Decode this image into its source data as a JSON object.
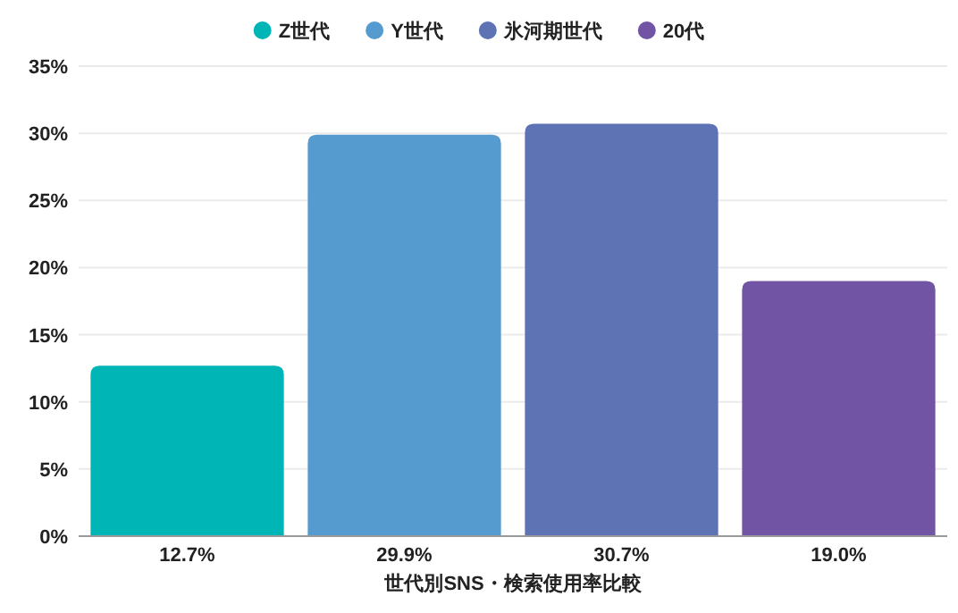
{
  "chart_data": {
    "type": "bar",
    "xlabel": "世代別SNS・検索使用率比較",
    "categories": [
      null,
      null,
      null,
      null
    ],
    "ylim": [
      0,
      35
    ],
    "yticks": [
      {
        "value": 0,
        "label": "0%"
      },
      {
        "value": 5,
        "label": "5%"
      },
      {
        "value": 10,
        "label": "10%"
      },
      {
        "value": 15,
        "label": "15%"
      },
      {
        "value": 20,
        "label": "20%"
      },
      {
        "value": 25,
        "label": "25%"
      },
      {
        "value": 30,
        "label": "30%"
      },
      {
        "value": 35,
        "label": "35%"
      }
    ],
    "grid": "y",
    "legend": "top",
    "series": [
      {
        "name": "Z世代",
        "color": "#00b5b5",
        "values": [
          12.7,
          null,
          null,
          null
        ],
        "value_labels": [
          "12.7%",
          null,
          null,
          null
        ]
      },
      {
        "name": "Y世代",
        "color": "#569bd0",
        "values": [
          null,
          29.9,
          null,
          null
        ],
        "value_labels": [
          null,
          "29.9%",
          null,
          null
        ]
      },
      {
        "name": "氷河期世代",
        "color": "#5d73b4",
        "values": [
          null,
          null,
          30.7,
          null
        ],
        "value_labels": [
          null,
          null,
          "30.7%",
          null
        ]
      },
      {
        "name": "20代",
        "color": "#7154a4",
        "values": [
          null,
          null,
          null,
          19.0
        ],
        "value_labels": [
          null,
          null,
          null,
          "19.0%"
        ]
      }
    ]
  }
}
